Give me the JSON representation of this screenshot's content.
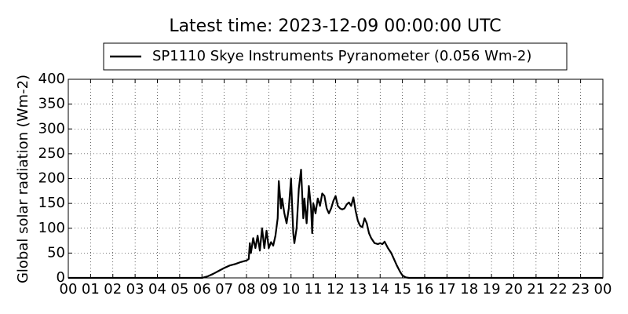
{
  "chart_data": {
    "type": "line",
    "title": "Latest time: 2023-12-09 00:00:00 UTC",
    "y_label": "Global solar radiation (Wm-2)",
    "legend": "upper center",
    "grid": true,
    "xlim": [
      0,
      24
    ],
    "ylim": [
      0,
      400
    ],
    "yticks": [
      0,
      50,
      100,
      150,
      200,
      250,
      300,
      350,
      400
    ],
    "xticks": [
      {
        "value": 0,
        "label": "00"
      },
      {
        "value": 1,
        "label": "01"
      },
      {
        "value": 2,
        "label": "02"
      },
      {
        "value": 3,
        "label": "03"
      },
      {
        "value": 4,
        "label": "04"
      },
      {
        "value": 5,
        "label": "05"
      },
      {
        "value": 6,
        "label": "06"
      },
      {
        "value": 7,
        "label": "07"
      },
      {
        "value": 8,
        "label": "08"
      },
      {
        "value": 9,
        "label": "09"
      },
      {
        "value": 10,
        "label": "10"
      },
      {
        "value": 11,
        "label": "11"
      },
      {
        "value": 12,
        "label": "12"
      },
      {
        "value": 13,
        "label": "13"
      },
      {
        "value": 14,
        "label": "14"
      },
      {
        "value": 15,
        "label": "15"
      },
      {
        "value": 16,
        "label": "16"
      },
      {
        "value": 17,
        "label": "17"
      },
      {
        "value": 18,
        "label": "18"
      },
      {
        "value": 19,
        "label": "19"
      },
      {
        "value": 20,
        "label": "20"
      },
      {
        "value": 21,
        "label": "21"
      },
      {
        "value": 22,
        "label": "22"
      },
      {
        "value": 23,
        "label": "23"
      },
      {
        "value": 24,
        "label": "00"
      }
    ],
    "x": [
      0,
      6,
      6.25,
      6.5,
      6.75,
      7,
      7.25,
      7.5,
      7.75,
      8,
      8.1,
      8.15,
      8.2,
      8.3,
      8.4,
      8.5,
      8.6,
      8.7,
      8.8,
      8.9,
      9,
      9.1,
      9.2,
      9.3,
      9.4,
      9.45,
      9.55,
      9.6,
      9.7,
      9.8,
      9.9,
      10,
      10.1,
      10.15,
      10.25,
      10.35,
      10.45,
      10.55,
      10.6,
      10.7,
      10.8,
      10.9,
      10.95,
      11,
      11.1,
      11.2,
      11.3,
      11.4,
      11.5,
      11.6,
      11.7,
      11.8,
      11.9,
      12,
      12.1,
      12.2,
      12.3,
      12.4,
      12.5,
      12.6,
      12.7,
      12.8,
      12.9,
      13,
      13.1,
      13.2,
      13.3,
      13.4,
      13.5,
      13.6,
      13.75,
      13.9,
      14,
      14.1,
      14.2,
      14.35,
      14.5,
      14.6,
      14.75,
      14.9,
      15,
      15.15,
      15.3,
      24
    ],
    "series": [
      {
        "name": "SP1110 Skye Instruments Pyranometer (0.056 Wm-2)",
        "color": "#000000",
        "values": [
          0,
          0,
          3,
          8,
          14,
          20,
          25,
          28,
          32,
          35,
          38,
          70,
          50,
          80,
          60,
          85,
          55,
          100,
          60,
          95,
          60,
          72,
          65,
          85,
          120,
          195,
          140,
          160,
          130,
          110,
          140,
          200,
          90,
          70,
          100,
          180,
          218,
          120,
          160,
          110,
          185,
          140,
          90,
          150,
          130,
          160,
          145,
          170,
          165,
          140,
          130,
          140,
          155,
          165,
          145,
          140,
          138,
          140,
          148,
          152,
          145,
          162,
          135,
          115,
          105,
          102,
          120,
          110,
          90,
          80,
          70,
          68,
          70,
          68,
          73,
          60,
          50,
          40,
          25,
          12,
          5,
          1,
          0,
          0
        ]
      }
    ]
  }
}
